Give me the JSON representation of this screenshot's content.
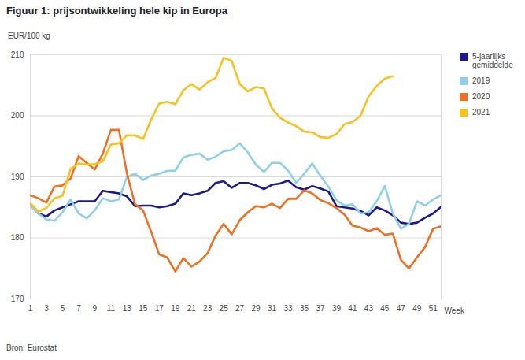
{
  "chart_data": {
    "type": "line",
    "title": "Figuur 1: prijsontwikkeling hele kip in Europa",
    "y_label": "EUR/100 kg",
    "x_label": "Week",
    "source": "Bron: Eurostat",
    "x": [
      1,
      2,
      3,
      4,
      5,
      6,
      7,
      8,
      9,
      10,
      11,
      12,
      13,
      14,
      15,
      16,
      17,
      18,
      19,
      20,
      21,
      22,
      23,
      24,
      25,
      26,
      27,
      28,
      29,
      30,
      31,
      32,
      33,
      34,
      35,
      36,
      37,
      38,
      39,
      40,
      41,
      42,
      43,
      44,
      45,
      46,
      47,
      48,
      49,
      50,
      51,
      52
    ],
    "series": [
      {
        "name": "5-jaarlijks gemiddelde",
        "color": "#1c1a8a",
        "values": [
          185.5,
          184,
          183.5,
          184.5,
          185,
          185.5,
          186,
          186,
          186,
          187.7,
          187.5,
          187.3,
          186.8,
          185.2,
          185.3,
          185.3,
          185,
          185.2,
          185.6,
          187.3,
          187,
          187.3,
          187.7,
          189,
          189.3,
          188.2,
          189,
          189,
          188.6,
          188,
          188.7,
          188.9,
          189.4,
          188.3,
          187.9,
          188.5,
          188.1,
          187.6,
          185.2,
          185,
          184.8,
          184.4,
          183.7,
          185,
          184.5,
          183.7,
          182.5,
          182.3,
          182.5,
          183.3,
          184,
          185.1
        ]
      },
      {
        "name": "2019",
        "color": "#8fd0e8",
        "values": [
          185.3,
          184,
          183,
          182.8,
          184.2,
          186.3,
          184,
          183.2,
          184.5,
          186.5,
          186,
          186.3,
          190,
          190.5,
          189.5,
          190.2,
          190.5,
          191,
          191,
          193.2,
          193.6,
          193.8,
          192.8,
          193.3,
          194.2,
          194.4,
          195.5,
          194,
          192,
          190.8,
          192.3,
          192.3,
          191,
          189,
          190.5,
          192.2,
          190.2,
          188.4,
          186.2,
          185.3,
          185.5,
          184,
          184.2,
          186,
          188.5,
          184,
          181.5,
          182.3,
          186,
          185.3,
          186.3,
          187
        ]
      },
      {
        "name": "2020",
        "color": "#f07022",
        "values": [
          187,
          186.5,
          185.8,
          188.4,
          188.6,
          189.7,
          193.4,
          192.3,
          191.2,
          193.8,
          197.7,
          197.7,
          190.5,
          185.5,
          184.5,
          181,
          177.3,
          176.8,
          174.5,
          176.7,
          175.3,
          176.1,
          177.5,
          180.4,
          182.3,
          180.6,
          182.9,
          184.2,
          185.2,
          185,
          185.6,
          184.9,
          186.4,
          186.4,
          187.8,
          187.3,
          186.2,
          185.7,
          184.9,
          183.8,
          182,
          181.7,
          181.1,
          181.6,
          180.5,
          180.7,
          176.4,
          175,
          176.8,
          178.5,
          181.5,
          181.9
        ]
      },
      {
        "name": "2021",
        "color": "#f9c020",
        "values": [
          185.7,
          184.3,
          184.9,
          186.5,
          186.9,
          191.3,
          192.2,
          192,
          192.1,
          192.5,
          195.3,
          195.5,
          196.8,
          196.8,
          196.2,
          199.4,
          202,
          202.3,
          201.9,
          204.2,
          205.2,
          204.3,
          205.5,
          206.2,
          209.5,
          209,
          205.2,
          204,
          204.7,
          204.5,
          201.2,
          199.7,
          198.9,
          198.3,
          197.4,
          197.3,
          196.5,
          196.4,
          197,
          198.6,
          199,
          200,
          203.2,
          204.9,
          206.1,
          206.5,
          null,
          null,
          null,
          null,
          null,
          null
        ]
      }
    ],
    "xlim": [
      1,
      52
    ],
    "xticks": [
      1,
      3,
      5,
      7,
      9,
      11,
      13,
      15,
      17,
      19,
      21,
      23,
      25,
      27,
      29,
      31,
      33,
      35,
      37,
      39,
      41,
      43,
      45,
      47,
      49,
      51
    ],
    "ylim": [
      170,
      210
    ],
    "yticks": [
      170,
      180,
      190,
      200,
      210
    ],
    "grid": true,
    "legend": "right"
  }
}
